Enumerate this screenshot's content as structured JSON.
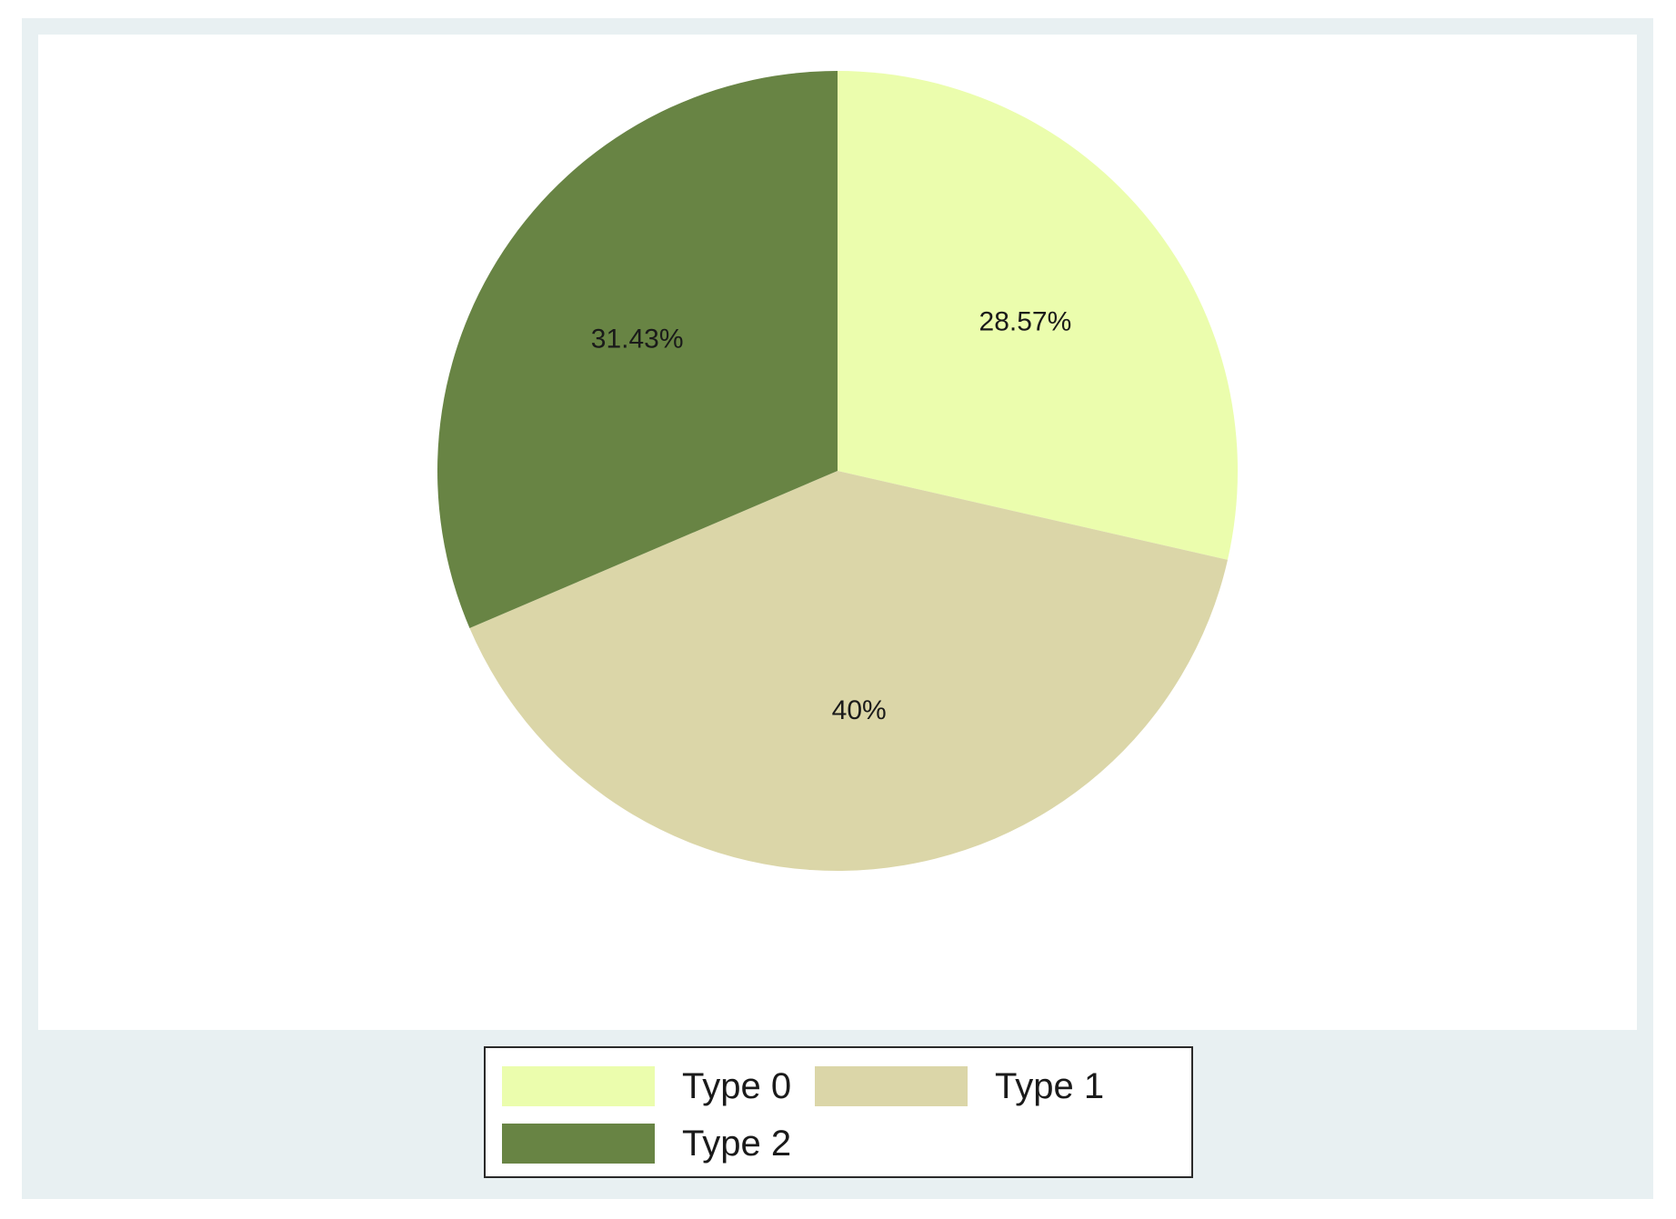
{
  "chart_data": {
    "type": "pie",
    "title": "",
    "slices": [
      {
        "name": "Type 0",
        "value": 28.57,
        "label": "28.57%",
        "color": "#ebfdad"
      },
      {
        "name": "Type 1",
        "value": 40,
        "label": "40%",
        "color": "#dbd6a8"
      },
      {
        "name": "Type 2",
        "value": 31.43,
        "label": "31.43%",
        "color": "#688444"
      }
    ],
    "start_angle": "12 o'clock",
    "direction": "clockwise",
    "legend_position": "bottom",
    "legend": {
      "items": [
        {
          "label": "Type 0",
          "color": "#ebfdad"
        },
        {
          "label": "Type 1",
          "color": "#dbd6a8"
        },
        {
          "label": "Type 2",
          "color": "#688444"
        }
      ]
    }
  },
  "colors": {
    "outer_background": "#e8f0f2",
    "plot_background": "#ffffff"
  }
}
